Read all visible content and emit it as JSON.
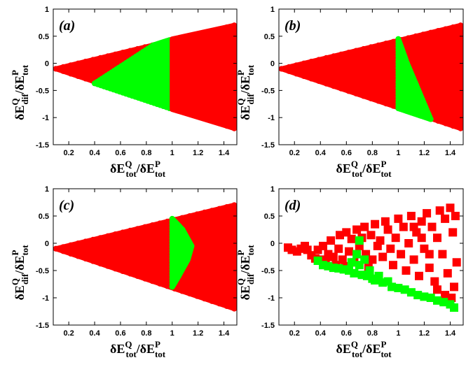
{
  "chart_data": [
    {
      "type": "scatter",
      "panel_label": "(a)",
      "xlabel": "δE_tot^Q / δE_tot^P",
      "ylabel": "δE_dif^Q / δE_tot^P",
      "xlim": [
        0.08,
        1.5
      ],
      "ylim": [
        -1.5,
        1
      ],
      "xticks": [
        "0.2",
        "0.4",
        "0.6",
        "0.8",
        "1",
        "1.2",
        "1.4"
      ],
      "yticks": [
        "-1.5",
        "-1",
        "-0.5",
        "0",
        "0.5",
        "1"
      ],
      "legend": "none",
      "series": [
        {
          "color": "#ff0000",
          "marker": "circle",
          "values": [
            [
              0.1,
              -0.1
            ],
            [
              1.48,
              0.7
            ],
            [
              1.48,
              -1.2
            ],
            [
              0.4,
              -0.37
            ],
            [
              0.85,
              0.33
            ],
            [
              1.0,
              0.45
            ],
            [
              1.0,
              -0.85
            ]
          ]
        },
        {
          "color": "#00ff00",
          "marker": "circle",
          "values": [
            [
              0.4,
              -0.37
            ],
            [
              0.85,
              0.33
            ],
            [
              0.98,
              0.43
            ],
            [
              0.98,
              -0.83
            ]
          ]
        }
      ]
    },
    {
      "type": "scatter",
      "panel_label": "(b)",
      "xlabel": "δE_tot^Q / δE_tot^P",
      "ylabel": "δE_dif^Q / δE_tot^P",
      "xlim": [
        0.08,
        1.5
      ],
      "ylim": [
        -1.5,
        1
      ],
      "xticks": [
        "0.2",
        "0.4",
        "0.6",
        "0.8",
        "1",
        "1.2",
        "1.4"
      ],
      "yticks": [
        "-1.5",
        "-1",
        "-0.5",
        "0",
        "0.5",
        "1"
      ],
      "legend": "none",
      "series": [
        {
          "color": "#ff0000",
          "marker": "circle",
          "values": [
            [
              0.1,
              -0.1
            ],
            [
              1.48,
              0.7
            ],
            [
              1.48,
              -1.2
            ]
          ]
        },
        {
          "color": "#00ff00",
          "marker": "circle",
          "values": [
            [
              1.0,
              0.45
            ],
            [
              1.06,
              0.05
            ],
            [
              1.25,
              -1.03
            ],
            [
              1.0,
              -0.83
            ]
          ]
        }
      ]
    },
    {
      "type": "scatter",
      "panel_label": "(c)",
      "xlabel": "δE_tot^Q / δE_tot^P",
      "ylabel": "δE_dif^Q / δE_tot^P",
      "xlim": [
        0.08,
        1.5
      ],
      "ylim": [
        -1.5,
        1
      ],
      "xticks": [
        "0.2",
        "0.4",
        "0.6",
        "0.8",
        "1",
        "1.2",
        "1.4"
      ],
      "yticks": [
        "-1.5",
        "-1",
        "-0.5",
        "0",
        "0.5",
        "1"
      ],
      "legend": "none",
      "series": [
        {
          "color": "#ff0000",
          "marker": "circle",
          "values": [
            [
              0.1,
              -0.1
            ],
            [
              1.48,
              0.7
            ],
            [
              1.48,
              -1.2
            ]
          ]
        },
        {
          "color": "#00ff00",
          "marker": "circle",
          "values": [
            [
              1.0,
              0.45
            ],
            [
              1.08,
              0.25
            ],
            [
              1.15,
              -0.05
            ],
            [
              1.12,
              -0.3
            ],
            [
              1.05,
              -0.6
            ],
            [
              1.0,
              -0.8
            ]
          ]
        }
      ]
    },
    {
      "type": "scatter",
      "panel_label": "(d)",
      "xlabel": "δE_tot^Q / δE_tot^P",
      "ylabel": "δE_dif^Q / δE_tot^P",
      "xlim": [
        0.08,
        1.5
      ],
      "ylim": [
        -1.5,
        1
      ],
      "xticks": [
        "0.2",
        "0.4",
        "0.6",
        "0.8",
        "1",
        "1.2",
        "1.4"
      ],
      "yticks": [
        "-1.5",
        "-1",
        "-0.5",
        "0",
        "0.5",
        "1"
      ],
      "legend": "none",
      "series": [
        {
          "color": "#ff0000",
          "marker": "square",
          "values": [
            [
              0.15,
              -0.08
            ],
            [
              0.18,
              -0.12
            ],
            [
              0.22,
              -0.15
            ],
            [
              0.25,
              -0.1
            ],
            [
              0.28,
              -0.05
            ],
            [
              0.3,
              -0.12
            ],
            [
              0.33,
              -0.22
            ],
            [
              0.36,
              -0.28
            ],
            [
              0.38,
              -0.12
            ],
            [
              0.4,
              -0.3
            ],
            [
              0.42,
              -0.05
            ],
            [
              0.44,
              -0.35
            ],
            [
              0.46,
              -0.2
            ],
            [
              0.48,
              0.05
            ],
            [
              0.5,
              -0.25
            ],
            [
              0.52,
              -0.4
            ],
            [
              0.54,
              -0.1
            ],
            [
              0.55,
              0.15
            ],
            [
              0.57,
              -0.3
            ],
            [
              0.59,
              -0.42
            ],
            [
              0.6,
              0.2
            ],
            [
              0.62,
              -0.15
            ],
            [
              0.64,
              0.08
            ],
            [
              0.66,
              -0.35
            ],
            [
              0.68,
              0.25
            ],
            [
              0.7,
              -0.05
            ],
            [
              0.72,
              0.1
            ],
            [
              0.74,
              0.3
            ],
            [
              0.75,
              -0.2
            ],
            [
              0.77,
              -0.45
            ],
            [
              0.79,
              0.15
            ],
            [
              0.8,
              -0.3
            ],
            [
              0.82,
              0.35
            ],
            [
              0.84,
              -0.05
            ],
            [
              0.86,
              0.05
            ],
            [
              0.88,
              -0.25
            ],
            [
              0.9,
              0.4
            ],
            [
              0.92,
              0.25
            ],
            [
              0.94,
              -0.1
            ],
            [
              0.96,
              -0.4
            ],
            [
              0.98,
              0.1
            ],
            [
              1.0,
              0.45
            ],
            [
              1.02,
              -0.2
            ],
            [
              1.04,
              0.3
            ],
            [
              1.06,
              -0.5
            ],
            [
              1.08,
              0.0
            ],
            [
              1.1,
              0.5
            ],
            [
              1.12,
              -0.3
            ],
            [
              1.14,
              0.2
            ],
            [
              1.16,
              -0.6
            ],
            [
              1.18,
              0.4
            ],
            [
              1.2,
              -0.1
            ],
            [
              1.22,
              0.55
            ],
            [
              1.24,
              -0.45
            ],
            [
              1.26,
              0.3
            ],
            [
              1.28,
              -0.7
            ],
            [
              1.3,
              0.1
            ],
            [
              1.32,
              0.6
            ],
            [
              1.34,
              -0.2
            ],
            [
              1.36,
              0.45
            ],
            [
              1.38,
              -0.55
            ],
            [
              1.4,
              0.65
            ],
            [
              1.42,
              0.2
            ],
            [
              1.43,
              -0.8
            ],
            [
              1.44,
              0.5
            ],
            [
              1.45,
              -0.35
            ],
            [
              1.3,
              -0.85
            ],
            [
              1.36,
              -0.95
            ],
            [
              1.41,
              -1.0
            ],
            [
              1.24,
              -0.2
            ],
            [
              1.18,
              0.1
            ],
            [
              1.12,
              0.3
            ]
          ]
        },
        {
          "color": "#00ff00",
          "marker": "square",
          "values": [
            [
              0.38,
              -0.32
            ],
            [
              0.42,
              -0.4
            ],
            [
              0.46,
              -0.42
            ],
            [
              0.5,
              -0.45
            ],
            [
              0.54,
              -0.46
            ],
            [
              0.58,
              -0.48
            ],
            [
              0.62,
              -0.5
            ],
            [
              0.64,
              -0.35
            ],
            [
              0.66,
              -0.55
            ],
            [
              0.68,
              -0.2
            ],
            [
              0.7,
              -0.4
            ],
            [
              0.7,
              0.05
            ],
            [
              0.72,
              -0.58
            ],
            [
              0.74,
              -0.3
            ],
            [
              0.76,
              -0.6
            ],
            [
              0.78,
              -0.5
            ],
            [
              0.8,
              -0.65
            ],
            [
              0.82,
              -0.68
            ],
            [
              0.85,
              -0.6
            ],
            [
              0.88,
              -0.72
            ],
            [
              0.92,
              -0.7
            ],
            [
              0.95,
              -0.8
            ],
            [
              1.0,
              -0.82
            ],
            [
              1.05,
              -0.85
            ],
            [
              1.1,
              -0.9
            ],
            [
              1.15,
              -0.95
            ],
            [
              1.2,
              -0.98
            ],
            [
              1.25,
              -1.0
            ],
            [
              1.3,
              -1.05
            ],
            [
              1.35,
              -1.08
            ],
            [
              1.4,
              -1.12
            ],
            [
              1.43,
              -1.18
            ]
          ]
        }
      ]
    }
  ]
}
